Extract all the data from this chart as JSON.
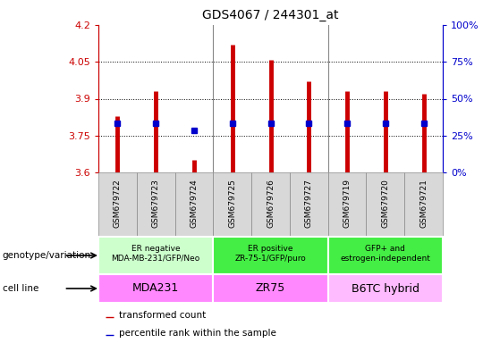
{
  "title": "GDS4067 / 244301_at",
  "samples": [
    "GSM679722",
    "GSM679723",
    "GSM679724",
    "GSM679725",
    "GSM679726",
    "GSM679727",
    "GSM679719",
    "GSM679720",
    "GSM679721"
  ],
  "transformed_count": [
    3.83,
    3.93,
    3.65,
    4.12,
    4.06,
    3.97,
    3.93,
    3.93,
    3.92
  ],
  "percentile_rank": [
    3.8,
    3.8,
    3.77,
    3.8,
    3.8,
    3.8,
    3.8,
    3.8,
    3.8
  ],
  "y_min": 3.6,
  "y_max": 4.2,
  "y_ticks": [
    3.6,
    3.75,
    3.9,
    4.05,
    4.2
  ],
  "y2_ticks": [
    0,
    25,
    50,
    75,
    100
  ],
  "bar_color": "#cc0000",
  "dot_color": "#0000cc",
  "groups": [
    {
      "label": "ER negative\nMDA-MB-231/GFP/Neo",
      "cell_line": "MDA231",
      "start": 0,
      "end": 3,
      "genotype_color": "#ccffcc",
      "cell_color": "#ff88ff"
    },
    {
      "label": "ER positive\nZR-75-1/GFP/puro",
      "cell_line": "ZR75",
      "start": 3,
      "end": 6,
      "genotype_color": "#44ee44",
      "cell_color": "#ff88ff"
    },
    {
      "label": "GFP+ and\nestrogen-independent",
      "cell_line": "B6TC hybrid",
      "start": 6,
      "end": 9,
      "genotype_color": "#44ee44",
      "cell_color": "#ffbbff"
    }
  ],
  "left_labels": [
    "genotype/variation",
    "cell line"
  ],
  "legend_items": [
    "transformed count",
    "percentile rank within the sample"
  ],
  "legend_colors": [
    "#cc0000",
    "#0000cc"
  ],
  "tick_color_left": "#cc0000",
  "tick_color_right": "#0000cc",
  "sample_box_color": "#d8d8d8",
  "sample_box_edge": "#888888"
}
